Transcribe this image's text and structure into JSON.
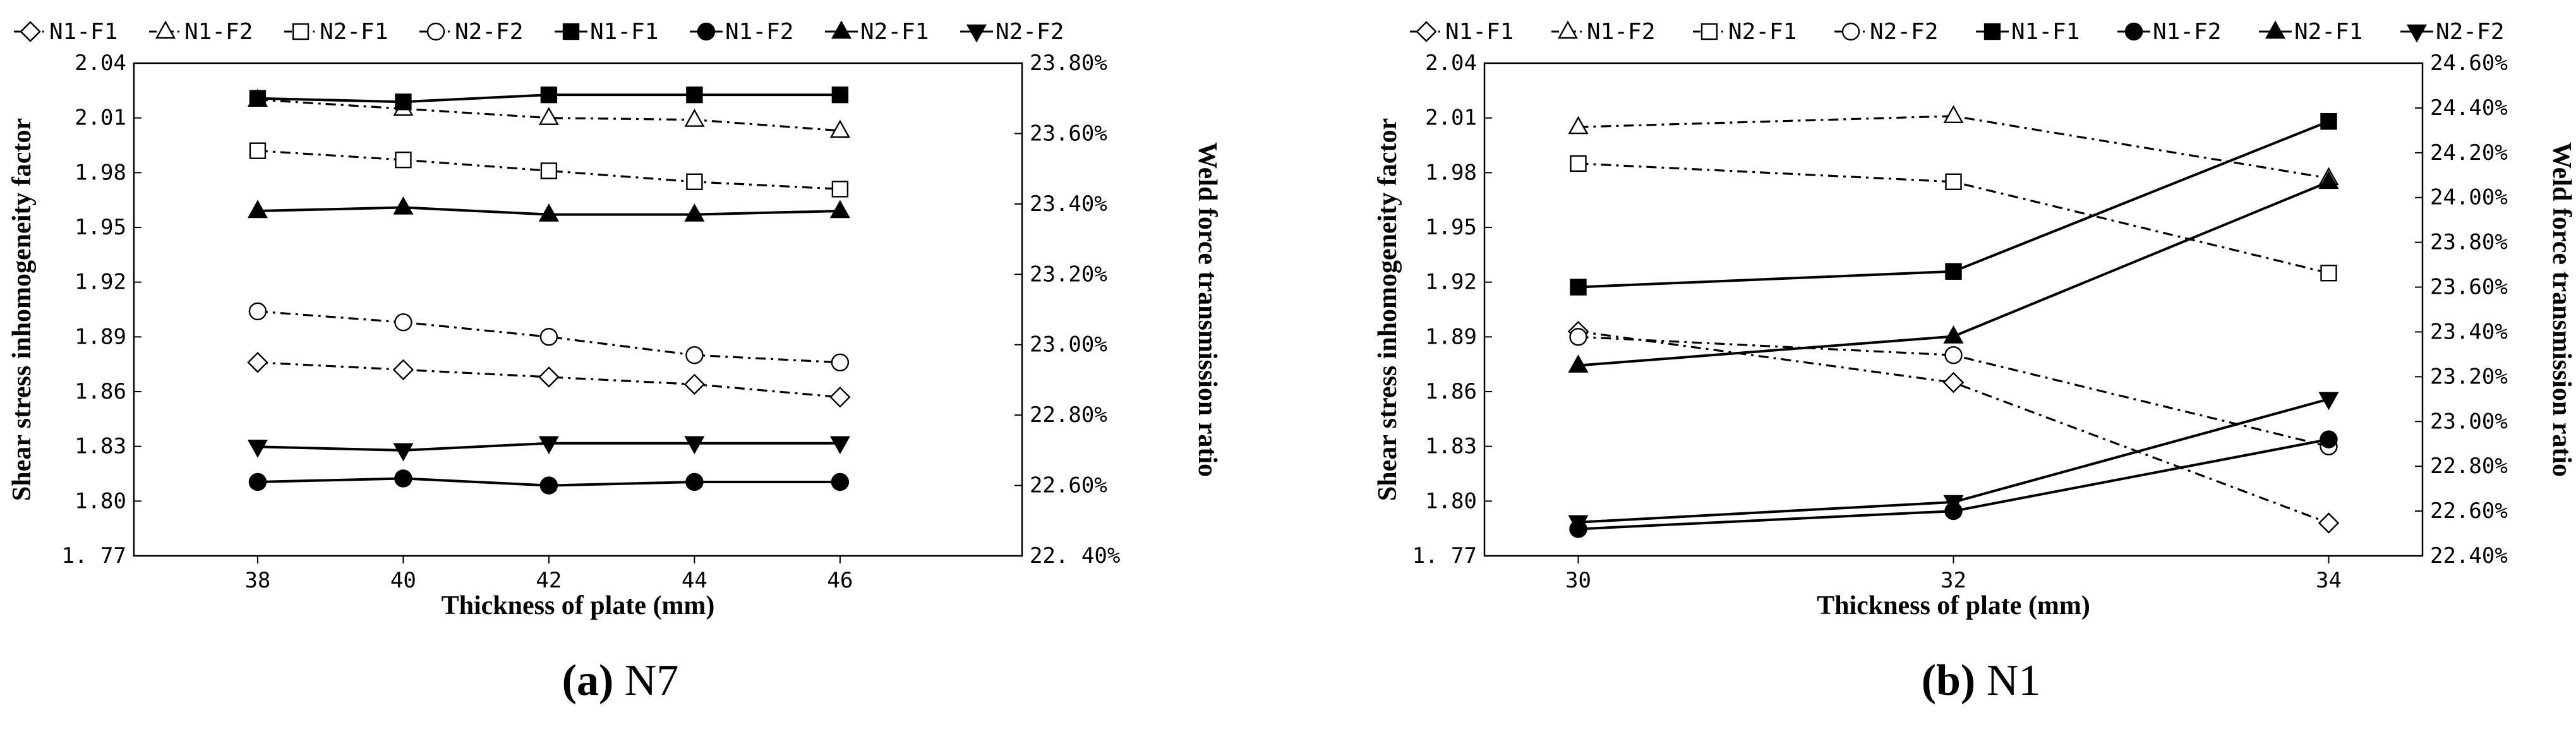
{
  "figure": {
    "captions": [
      {
        "letter": "(a)",
        "text": " N7"
      },
      {
        "letter": "(b)",
        "text": " N1"
      }
    ]
  },
  "colors": {
    "ink": "#000000",
    "background": "#ffffff"
  },
  "chart_data": [
    {
      "type": "line",
      "panel": "a",
      "label": "N7",
      "xlabel": "Thickness of plate (mm)",
      "ylabel": "Shear stress inhomogeneity factor",
      "y2label": "Weld force transmission ratio",
      "x": [
        38,
        40,
        42,
        44,
        46
      ],
      "x_ticks": [
        "38",
        "40",
        "42",
        "44",
        "46"
      ],
      "xlim": [
        36.3,
        48.5
      ],
      "ylim": [
        1.77,
        2.04
      ],
      "y_ticks": [
        "1. 77",
        "1.80",
        "1.83",
        "1.86",
        "1.89",
        "1.92",
        "1.95",
        "1.98",
        "2.01",
        "2.04"
      ],
      "y2lim": [
        22.4,
        23.8
      ],
      "y2_ticks": [
        "22. 40%",
        "22.60%",
        "22.80%",
        "23.00%",
        "23.20%",
        "23.40%",
        "23.60%",
        "23.80%"
      ],
      "legend": [
        "N1-F1",
        "N1-F2",
        "N2-F1",
        "N2-F2",
        "N1-F1",
        "N1-F2",
        "N2-F1",
        "N2-F2"
      ],
      "legend_position": "top",
      "series": [
        {
          "name": "N1-F1",
          "axis": "left",
          "marker": "diamond-open",
          "line": "dashdot",
          "values": [
            1.876,
            1.872,
            1.868,
            1.864,
            1.857
          ]
        },
        {
          "name": "N1-F2",
          "axis": "left",
          "marker": "triangle-open",
          "line": "dashdot",
          "values": [
            2.02,
            2.015,
            2.01,
            2.009,
            2.003
          ]
        },
        {
          "name": "N2-F1",
          "axis": "left",
          "marker": "square-open",
          "line": "dashdot",
          "values": [
            1.992,
            1.987,
            1.981,
            1.975,
            1.971
          ]
        },
        {
          "name": "N2-F2",
          "axis": "left",
          "marker": "circle-open",
          "line": "dashdot",
          "values": [
            1.904,
            1.898,
            1.89,
            1.88,
            1.876
          ]
        },
        {
          "name": "N1-F1",
          "axis": "right",
          "marker": "square-filled",
          "line": "solid",
          "values": [
            23.7,
            23.69,
            23.71,
            23.71,
            23.71
          ]
        },
        {
          "name": "N1-F2",
          "axis": "right",
          "marker": "circle-filled",
          "line": "solid",
          "values": [
            22.61,
            22.62,
            22.6,
            22.61,
            22.61
          ]
        },
        {
          "name": "N2-F1",
          "axis": "right",
          "marker": "triangle-filled",
          "line": "solid",
          "values": [
            23.38,
            23.39,
            23.37,
            23.37,
            23.38
          ]
        },
        {
          "name": "N2-F2",
          "axis": "right",
          "marker": "triangle-down-filled",
          "line": "solid",
          "values": [
            22.71,
            22.7,
            22.72,
            22.72,
            22.72
          ]
        }
      ]
    },
    {
      "type": "line",
      "panel": "b",
      "label": "N1",
      "xlabel": "Thickness of plate (mm)",
      "ylabel": "Shear stress inhomogeneity factor",
      "y2label": "Weld force transmission ratio",
      "x": [
        30,
        32,
        34
      ],
      "x_ticks": [
        "30",
        "32",
        "34"
      ],
      "xlim": [
        29.5,
        34.5
      ],
      "ylim": [
        1.77,
        2.04
      ],
      "y_ticks": [
        "1. 77",
        "1.80",
        "1.83",
        "1.86",
        "1.89",
        "1.92",
        "1.95",
        "1.98",
        "2.01",
        "2.04"
      ],
      "y2lim": [
        22.4,
        24.6
      ],
      "y2_ticks": [
        "22.40%",
        "22.60%",
        "22.80%",
        "23.00%",
        "23.20%",
        "23.40%",
        "23.60%",
        "23.80%",
        "24.00%",
        "24.20%",
        "24.40%",
        "24.60%"
      ],
      "legend": [
        "N1-F1",
        "N1-F2",
        "N2-F1",
        "N2-F2",
        "N1-F1",
        "N1-F2",
        "N2-F1",
        "N2-F2"
      ],
      "legend_position": "top",
      "series": [
        {
          "name": "N1-F1",
          "axis": "left",
          "marker": "diamond-open",
          "line": "dashdot",
          "values": [
            1.893,
            1.865,
            1.788
          ]
        },
        {
          "name": "N1-F2",
          "axis": "left",
          "marker": "triangle-open",
          "line": "dashdot",
          "values": [
            2.005,
            2.011,
            1.977
          ]
        },
        {
          "name": "N2-F1",
          "axis": "left",
          "marker": "square-open",
          "line": "dashdot",
          "values": [
            1.985,
            1.975,
            1.925
          ]
        },
        {
          "name": "N2-F2",
          "axis": "left",
          "marker": "circle-open",
          "line": "dashdot",
          "values": [
            1.89,
            1.88,
            1.83
          ]
        },
        {
          "name": "N1-F1",
          "axis": "right",
          "marker": "square-filled",
          "line": "solid",
          "values": [
            23.6,
            23.67,
            24.34
          ]
        },
        {
          "name": "N1-F2",
          "axis": "right",
          "marker": "circle-filled",
          "line": "solid",
          "values": [
            22.52,
            22.6,
            22.92
          ]
        },
        {
          "name": "N2-F1",
          "axis": "right",
          "marker": "triangle-filled",
          "line": "solid",
          "values": [
            23.25,
            23.38,
            24.07
          ]
        },
        {
          "name": "N2-F2",
          "axis": "right",
          "marker": "triangle-down-filled",
          "line": "solid",
          "values": [
            22.55,
            22.64,
            23.1
          ]
        }
      ]
    }
  ]
}
